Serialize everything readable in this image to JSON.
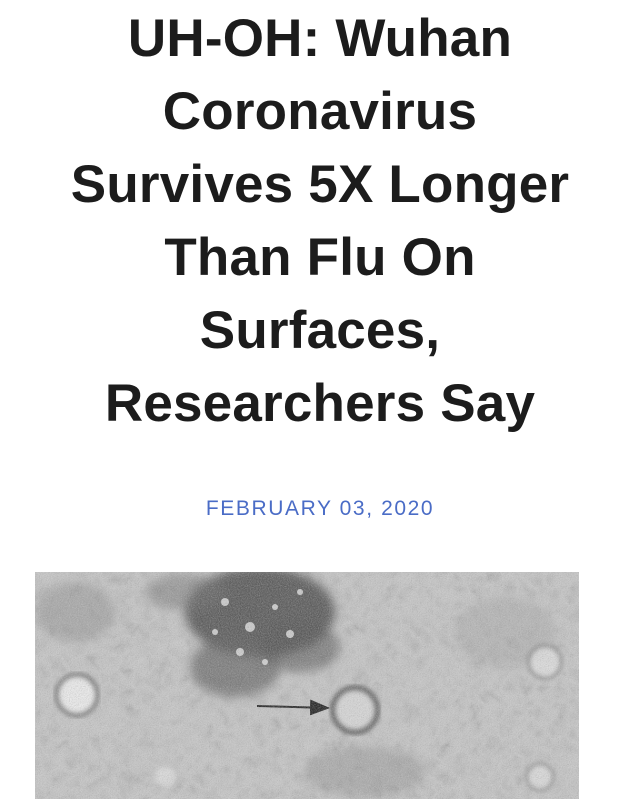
{
  "article": {
    "headline_lines": [
      "UH-OH: Wuhan",
      "Coronavirus",
      "Survives 5X Longer",
      "Than Flu On",
      "Surfaces,",
      "Researchers Say"
    ],
    "date": "FEBRUARY 03, 2020",
    "date_color": "#4a6cc6",
    "image": {
      "kind": "electron-microscope-photo",
      "tone": "grayscale"
    }
  }
}
